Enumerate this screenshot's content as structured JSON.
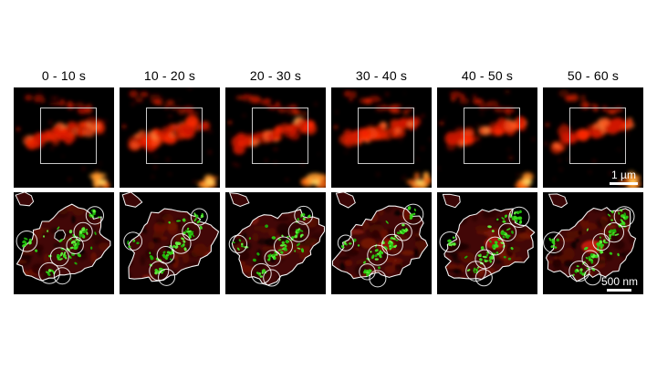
{
  "figure": {
    "time_labels": [
      "0 - 10 s",
      "10 - 20 s",
      "20 - 30 s",
      "30 - 40 s",
      "40 - 50 s",
      "50 - 60 s"
    ],
    "scale_bars": {
      "top_row": "1 µm",
      "bottom_row": "500 nm"
    },
    "colors": {
      "page_background": "#ffffff",
      "panel_background": "#000000",
      "fluorescence_red": "#ff2800",
      "fluorescence_dim_red": "#b31400",
      "hotspot_orange": "#ffd35e",
      "cell_fill_dark_red": "#420707",
      "puncta_green": "#3ce020",
      "outline_white": "#f4f4f4",
      "roi_box": "#c8c8c8",
      "scale_bar": "#ffffff",
      "label_text": "#000000"
    }
  }
}
